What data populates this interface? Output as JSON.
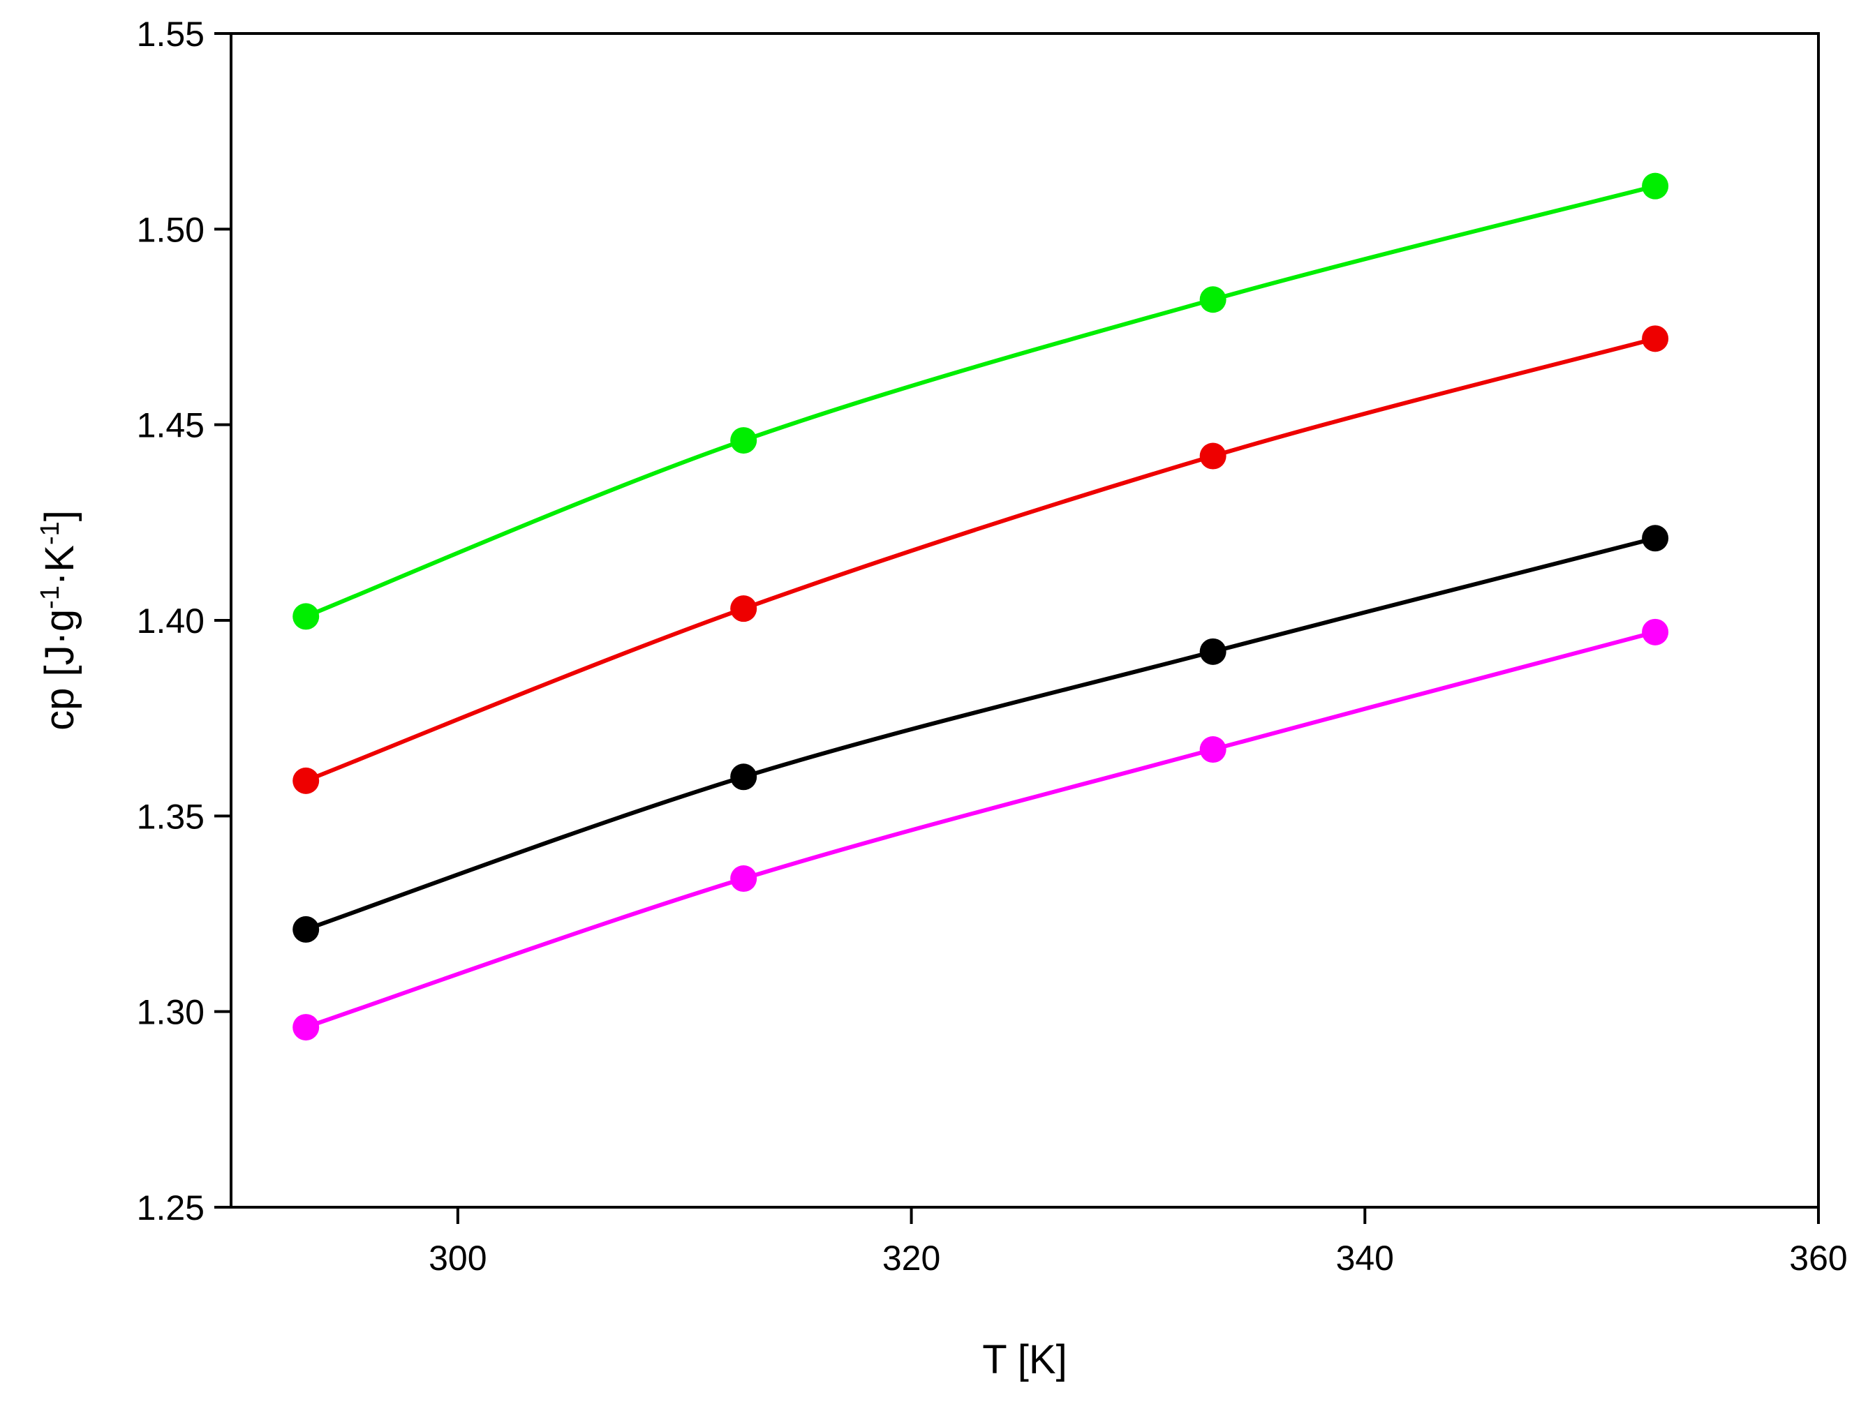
{
  "chart_data": {
    "type": "line",
    "xlabel": "T [K]",
    "ylabel": {
      "parts": [
        {
          "text": "cp [J·g",
          "sup": false
        },
        {
          "text": "-1",
          "sup": true
        },
        {
          "text": "·K",
          "sup": false
        },
        {
          "text": "-1",
          "sup": true
        },
        {
          "text": "]",
          "sup": false
        }
      ]
    },
    "xlim": [
      290,
      360
    ],
    "ylim": [
      1.25,
      1.55
    ],
    "xticks": [
      300,
      320,
      340,
      360
    ],
    "xtick_labels": [
      "300",
      "320",
      "340",
      "360"
    ],
    "yticks": [
      1.25,
      1.3,
      1.35,
      1.4,
      1.45,
      1.5,
      1.55
    ],
    "ytick_labels": [
      "1.25",
      "1.30",
      "1.35",
      "1.40",
      "1.45",
      "1.50",
      "1.55"
    ],
    "grid": false,
    "legend": "none",
    "series": [
      {
        "color": "#00ee00",
        "x": [
          293.3,
          312.6,
          333.3,
          352.8
        ],
        "y": [
          1.401,
          1.446,
          1.482,
          1.511
        ]
      },
      {
        "color": "#ee0000",
        "x": [
          293.3,
          312.6,
          333.3,
          352.8
        ],
        "y": [
          1.359,
          1.403,
          1.442,
          1.472
        ]
      },
      {
        "color": "#000000",
        "x": [
          293.3,
          312.6,
          333.3,
          352.8
        ],
        "y": [
          1.321,
          1.36,
          1.392,
          1.421
        ]
      },
      {
        "color": "#ff00ff",
        "x": [
          293.3,
          312.6,
          333.3,
          352.8
        ],
        "y": [
          1.296,
          1.334,
          1.367,
          1.397
        ]
      }
    ]
  }
}
